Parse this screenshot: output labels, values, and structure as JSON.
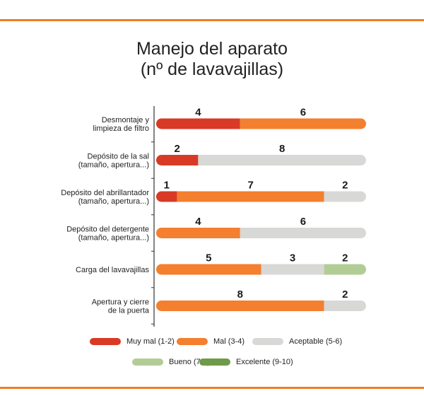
{
  "title_lines": [
    "Manejo del aparato",
    "(nº de lavavajillas)"
  ],
  "chart_data": {
    "type": "bar",
    "stacked": true,
    "orientation": "horizontal",
    "total": 10,
    "categories": [
      [
        "Desmontaje y",
        "limpieza de filtro"
      ],
      [
        "Depósito de la sal",
        "(tamaño, apertura...)"
      ],
      [
        "Depósito del abrillantador",
        "(tamaño, apertura...)"
      ],
      [
        "Depósito del detergente",
        "(tamaño, apertura...)"
      ],
      [
        "Carga del lavavajillas"
      ],
      [
        "Apertura y cierre",
        "de la puerta"
      ]
    ],
    "series": [
      {
        "name": "Muy mal (1-2)",
        "color": "#d93a26",
        "values": [
          4,
          2,
          1,
          0,
          0,
          0
        ]
      },
      {
        "name": "Mal (3-4)",
        "color": "#f47f2e",
        "values": [
          6,
          0,
          7,
          4,
          5,
          8
        ]
      },
      {
        "name": "Aceptable (5-6)",
        "color": "#d8d8d6",
        "values": [
          0,
          8,
          2,
          6,
          3,
          2
        ]
      },
      {
        "name": "Bueno (7-8)",
        "color": "#b2cc96",
        "values": [
          0,
          0,
          0,
          0,
          2,
          0
        ]
      },
      {
        "name": "Excelente (9-10)",
        "color": "#6f9a48",
        "values": [
          0,
          0,
          0,
          0,
          0,
          0
        ]
      }
    ],
    "legend_position": "bottom"
  }
}
